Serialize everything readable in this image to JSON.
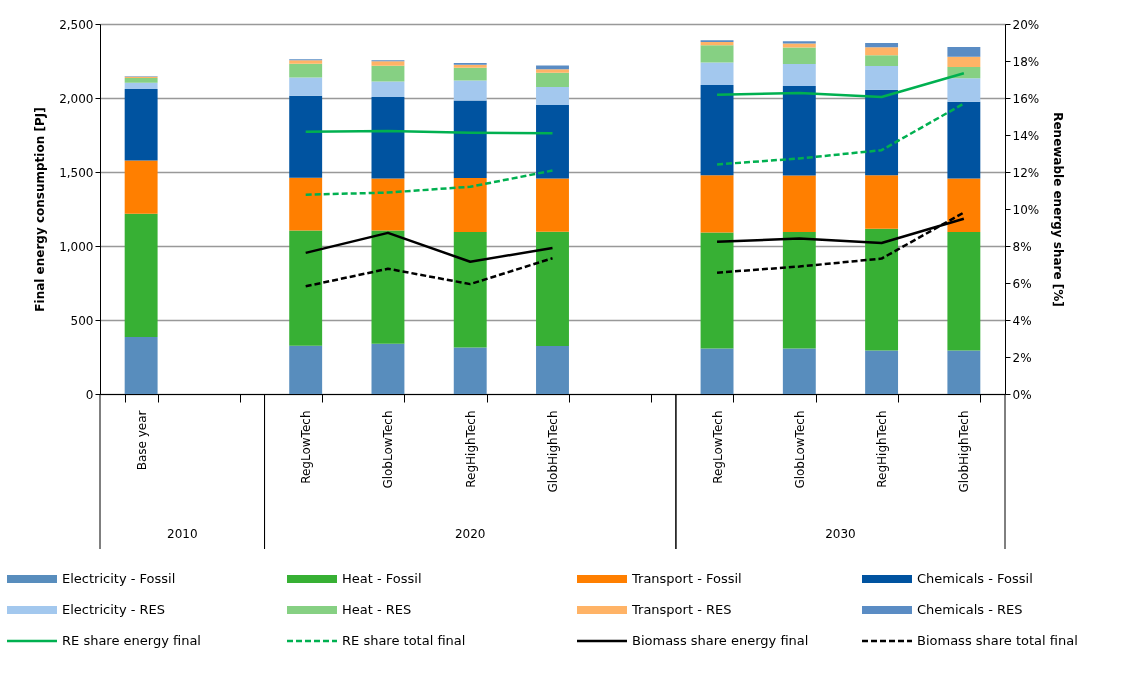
{
  "chart_data": {
    "type": "bar",
    "stacked": true,
    "ylabel": "Final energy consumption [PJ]",
    "y2label": "Renewable energy share [%]",
    "categories": [
      "Base year",
      null,
      "RegLowTech",
      "GlobLowTech",
      "RegHighTech",
      "GlobHighTech",
      null,
      "RegLowTech",
      "GlobLowTech",
      "RegHighTech",
      "GlobHighTech"
    ],
    "annotations": [
      "2010",
      "2020",
      "2030"
    ],
    "ylim": [
      0,
      2500
    ],
    "yticks": [
      {
        "value": 0,
        "label": "0"
      },
      {
        "value": 500,
        "label": "500"
      },
      {
        "value": 1000,
        "label": "1,000"
      },
      {
        "value": 1500,
        "label": "1,500"
      },
      {
        "value": 2000,
        "label": "2,000"
      },
      {
        "value": 2500,
        "label": "2,500"
      }
    ],
    "y2lim": [
      0,
      20
    ],
    "y2ticks": [
      {
        "value": 0,
        "label": "0%"
      },
      {
        "value": 2,
        "label": "2%"
      },
      {
        "value": 4,
        "label": "4%"
      },
      {
        "value": 6,
        "label": "6%"
      },
      {
        "value": 8,
        "label": "8%"
      },
      {
        "value": 10,
        "label": "10%"
      },
      {
        "value": 12,
        "label": "12%"
      },
      {
        "value": 14,
        "label": "14%"
      },
      {
        "value": 16,
        "label": "16%"
      },
      {
        "value": 18,
        "label": "18%"
      },
      {
        "value": 20,
        "label": "20%"
      }
    ],
    "grid": "y",
    "legend": "bottom",
    "series": [
      {
        "name": "Electricity - Fossil",
        "color": "#588dbd",
        "values": [
          385,
          null,
          326,
          340,
          314,
          324,
          null,
          307,
          307,
          294,
          294
        ]
      },
      {
        "name": "Heat - Fossil",
        "color": "#37b034",
        "values": [
          833,
          null,
          778,
          764,
          781,
          773,
          null,
          784,
          788,
          823,
          801
        ]
      },
      {
        "name": "Transport - Fossil",
        "color": "#ff7f00",
        "values": [
          359,
          null,
          357,
          352,
          364,
          359,
          null,
          387,
          381,
          361,
          361
        ]
      },
      {
        "name": "Chemicals - Fossil",
        "color": "#0053a0",
        "values": [
          483,
          null,
          554,
          550,
          524,
          496,
          null,
          610,
          605,
          577,
          518
        ]
      },
      {
        "name": "Electricity - RES",
        "color": "#a3c8ee",
        "values": [
          43,
          null,
          124,
          105,
          135,
          123,
          null,
          152,
          148,
          161,
          159
        ]
      },
      {
        "name": "Heat - RES",
        "color": "#86d083",
        "values": [
          32,
          null,
          92,
          107,
          87,
          96,
          null,
          116,
          112,
          73,
          77
        ]
      },
      {
        "name": "Transport - RES",
        "color": "#ffb366",
        "values": [
          9,
          null,
          24,
          31,
          20,
          24,
          null,
          22,
          28,
          54,
          69
        ]
      },
      {
        "name": "Chemicals - RES",
        "color": "#5a8cc4",
        "values": [
          3,
          null,
          7,
          6,
          11,
          25,
          null,
          12,
          15,
          28,
          66
        ]
      },
      {
        "name": "RE share energy final",
        "type": "line",
        "axis": "y2",
        "line_style": "solid",
        "color": "#00b050",
        "values": [
          null,
          null,
          14.18,
          14.21,
          14.12,
          14.09,
          null,
          16.17,
          16.27,
          16.05,
          17.34
        ]
      },
      {
        "name": "RE share total final",
        "type": "line",
        "axis": "y2",
        "line_style": "dashed",
        "color": "#00b050",
        "values": [
          null,
          null,
          10.77,
          10.89,
          11.2,
          12.08,
          null,
          12.41,
          12.73,
          13.18,
          15.7
        ]
      },
      {
        "name": "Biomass share energy final",
        "type": "line",
        "axis": "y2",
        "line_style": "solid",
        "color": "#000000",
        "values": [
          null,
          null,
          7.63,
          8.71,
          7.15,
          7.89,
          null,
          8.23,
          8.4,
          8.16,
          9.47
        ]
      },
      {
        "name": "Biomass share total final",
        "type": "line",
        "axis": "y2",
        "line_style": "dashed",
        "color": "#000000",
        "values": [
          null,
          null,
          5.82,
          6.77,
          5.94,
          7.34,
          null,
          6.56,
          6.89,
          7.32,
          9.81
        ]
      }
    ]
  }
}
